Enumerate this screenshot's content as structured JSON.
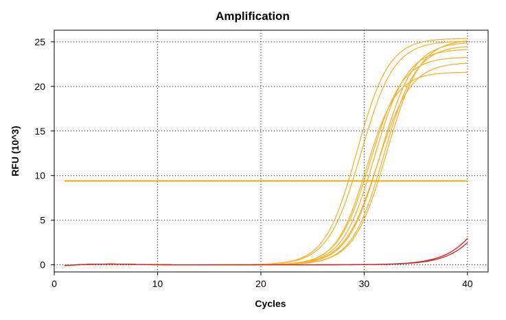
{
  "chart_data": {
    "type": "line",
    "title": "Amplification",
    "xlabel": "Cycles",
    "ylabel": "RFU (10^3)",
    "xlim": [
      0,
      42
    ],
    "ylim": [
      -0.8,
      26.3
    ],
    "x_ticks": [
      0,
      10,
      20,
      30,
      40
    ],
    "y_ticks": [
      0,
      5,
      10,
      15,
      20,
      25
    ],
    "grid": "dotted",
    "legend": "none",
    "threshold": {
      "value": 9.4,
      "x_range": [
        1,
        40
      ],
      "color": "#f5a800"
    },
    "series_colors": {
      "amplified": "#f5b22e",
      "late": "#e01818"
    },
    "series": [
      {
        "group": "amplified",
        "plateau": 25.4,
        "midpoint": 29.3,
        "slope": 1.55
      },
      {
        "group": "amplified",
        "plateau": 25.1,
        "midpoint": 29.7,
        "slope": 1.6
      },
      {
        "group": "amplified",
        "plateau": 21.6,
        "midpoint": 30.2,
        "slope": 1.45
      },
      {
        "group": "amplified",
        "plateau": 23.3,
        "midpoint": 30.6,
        "slope": 1.55
      },
      {
        "group": "amplified",
        "plateau": 24.2,
        "midpoint": 31.0,
        "slope": 1.55
      },
      {
        "group": "amplified",
        "plateau": 22.7,
        "midpoint": 31.3,
        "slope": 1.6
      },
      {
        "group": "amplified",
        "plateau": 25.0,
        "midpoint": 31.6,
        "slope": 1.6
      },
      {
        "group": "amplified",
        "plateau": 24.6,
        "midpoint": 31.9,
        "slope": 1.55
      },
      {
        "group": "amplified",
        "plateau": 25.3,
        "midpoint": 32.2,
        "slope": 1.6
      },
      {
        "group": "late",
        "plateau": 20,
        "midpoint": 43.5,
        "slope": 2.0
      },
      {
        "group": "late",
        "plateau": 20,
        "midpoint": 43.9,
        "slope": 2.0
      }
    ]
  }
}
